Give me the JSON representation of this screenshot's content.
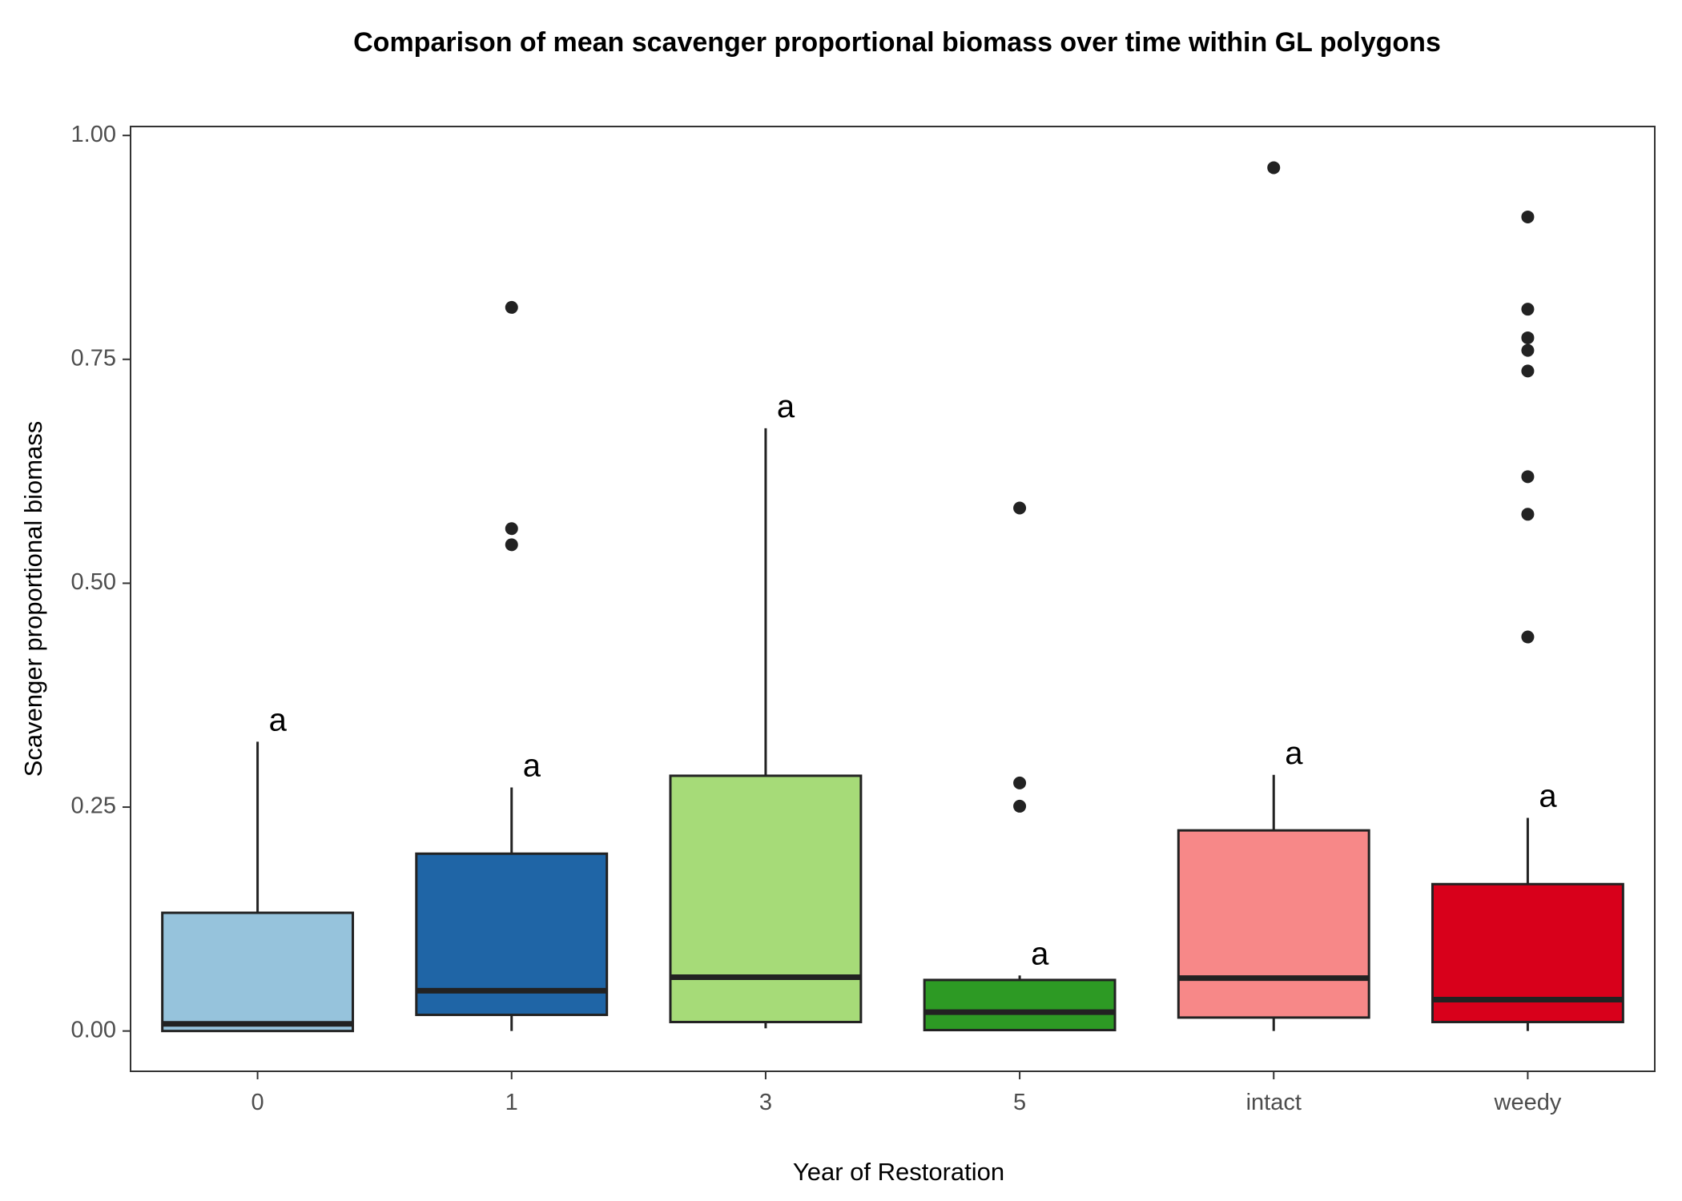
{
  "chart_data": {
    "type": "box",
    "title": "Comparison of mean scavenger proportional biomass over time within GL polygons",
    "xlabel": "Year of Restoration",
    "ylabel": "Scavenger proportional biomass",
    "ylim": [
      -0.045,
      1.01
    ],
    "yticks": [
      "0.00",
      "0.25",
      "0.50",
      "0.75",
      "1.00"
    ],
    "ytick_values": [
      0,
      0.25,
      0.5,
      0.75,
      1.0
    ],
    "grid": false,
    "categories": [
      "0",
      "1",
      "3",
      "5",
      "intact",
      "weedy"
    ],
    "boxes": [
      {
        "category": "0",
        "min": 0.0,
        "q1": 0.0,
        "median": 0.008,
        "q3": 0.132,
        "max": 0.323,
        "outliers": [],
        "fill": "#96c3dc",
        "letter": "a"
      },
      {
        "category": "1",
        "min": 0.0,
        "q1": 0.018,
        "median": 0.045,
        "q3": 0.198,
        "max": 0.272,
        "outliers": [
          0.808,
          0.561,
          0.543
        ],
        "fill": "#1f65a6",
        "letter": "a"
      },
      {
        "category": "3",
        "min": 0.003,
        "q1": 0.01,
        "median": 0.06,
        "q3": 0.285,
        "max": 0.673,
        "outliers": [],
        "fill": "#a6db78",
        "letter": "a"
      },
      {
        "category": "5",
        "min": 0.0,
        "q1": 0.001,
        "median": 0.021,
        "q3": 0.057,
        "max": 0.062,
        "outliers": [
          0.584,
          0.277,
          0.251
        ],
        "fill": "#2d9a24",
        "letter": "a"
      },
      {
        "category": "intact",
        "min": 0.0,
        "q1": 0.015,
        "median": 0.059,
        "q3": 0.224,
        "max": 0.286,
        "outliers": [
          0.964
        ],
        "fill": "#f78888",
        "letter": "a"
      },
      {
        "category": "weedy",
        "min": 0.0,
        "q1": 0.01,
        "median": 0.035,
        "q3": 0.164,
        "max": 0.238,
        "outliers": [
          0.909,
          0.806,
          0.774,
          0.76,
          0.737,
          0.619,
          0.577,
          0.44
        ],
        "fill": "#d8001b",
        "letter": "a"
      }
    ]
  }
}
